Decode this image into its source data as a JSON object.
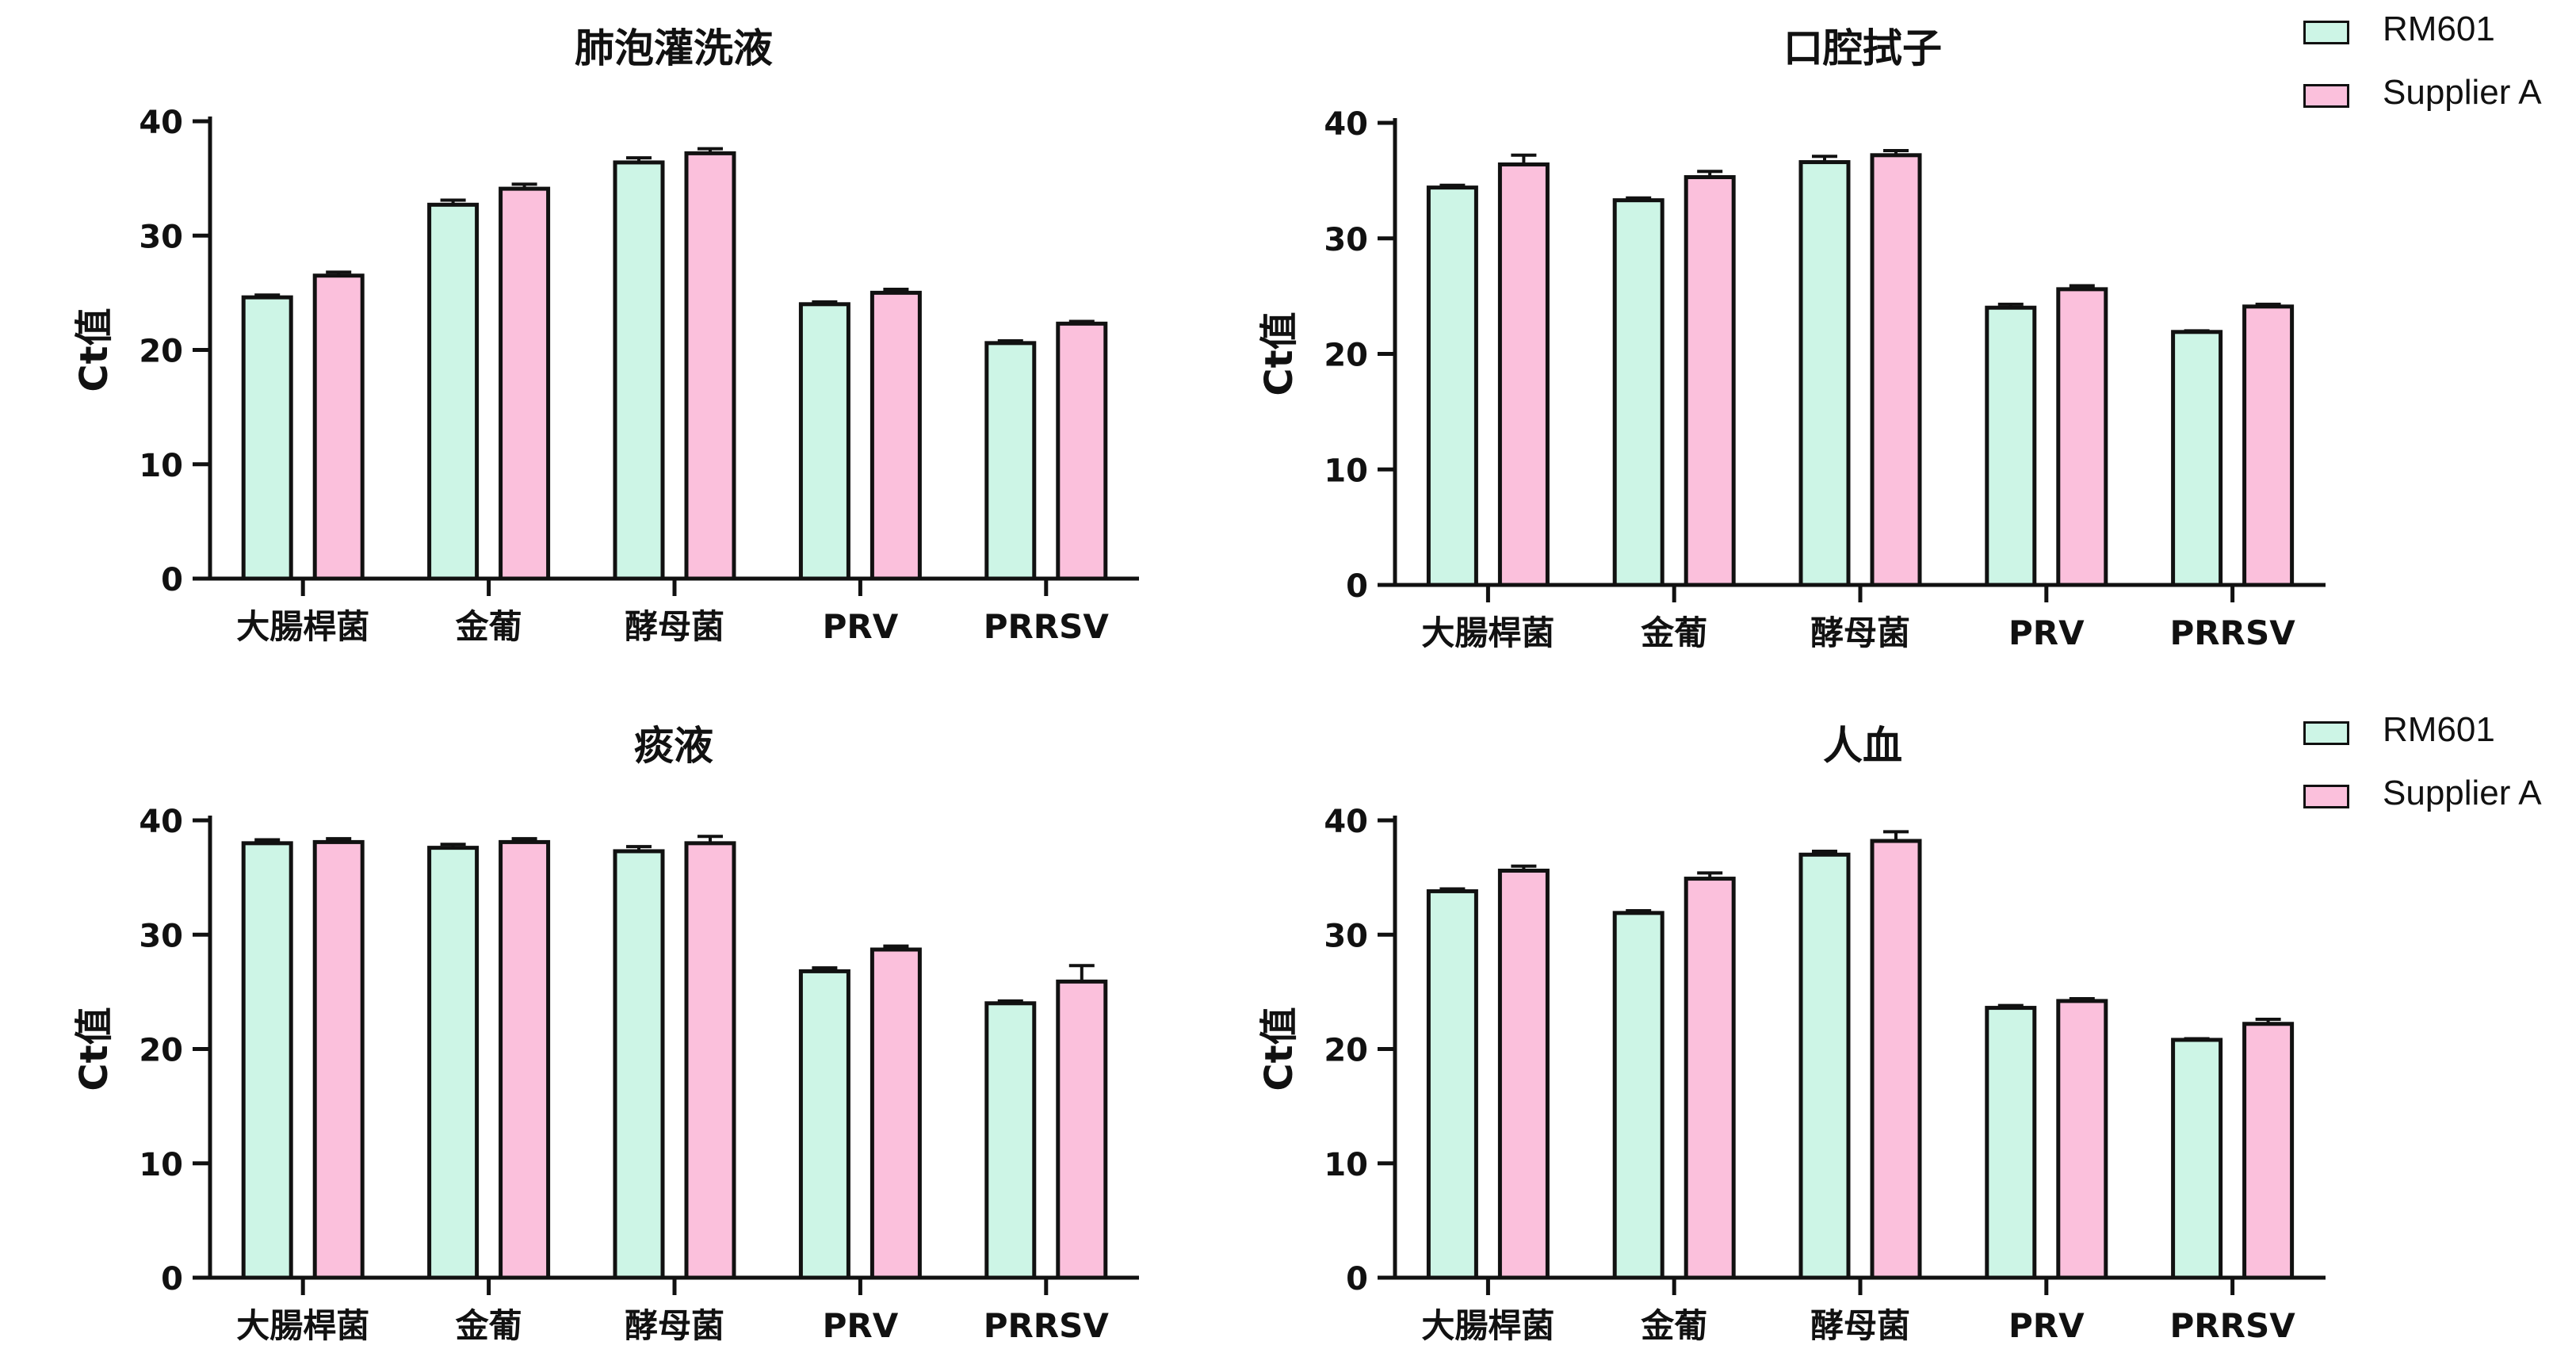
{
  "colors": {
    "RM601": "#cdf5e6",
    "Supplier A": "#fbc0dc",
    "axis": "#111111"
  },
  "legend": {
    "top": [
      {
        "label": "RM601",
        "color": "#cdf5e6"
      },
      {
        "label": "Supplier A",
        "color": "#fbc0dc"
      }
    ],
    "bottom": [
      {
        "label": "RM601",
        "color": "#cdf5e6"
      },
      {
        "label": "Supplier A",
        "color": "#fbc0dc"
      }
    ]
  },
  "chart_data": [
    {
      "type": "bar",
      "title": "肺泡灌洗液",
      "ylabel": "Ct值",
      "xlabel": "",
      "ylim": [
        0,
        40
      ],
      "yticks": [
        0,
        10,
        20,
        30,
        40
      ],
      "categories": [
        "大腸桿菌",
        "金葡",
        "酵母菌",
        "PRV",
        "PRRSV"
      ],
      "series": [
        {
          "name": "RM601",
          "values": [
            24.6,
            32.7,
            36.4,
            24.0,
            20.6
          ],
          "errors": [
            0.2,
            0.4,
            0.4,
            0.2,
            0.2
          ]
        },
        {
          "name": "Supplier A",
          "values": [
            26.5,
            34.1,
            37.2,
            25.0,
            22.3
          ],
          "errors": [
            0.3,
            0.4,
            0.4,
            0.3,
            0.2
          ]
        }
      ],
      "grid": false
    },
    {
      "type": "bar",
      "title": "口腔拭子",
      "ylabel": "Ct值",
      "xlabel": "",
      "ylim": [
        0,
        40
      ],
      "yticks": [
        0,
        10,
        20,
        30,
        40
      ],
      "categories": [
        "大腸桿菌",
        "金葡",
        "酵母菌",
        "PRV",
        "PRRSV"
      ],
      "series": [
        {
          "name": "RM601",
          "values": [
            34.4,
            33.3,
            36.6,
            24.0,
            21.9
          ],
          "errors": [
            0.2,
            0.2,
            0.5,
            0.3,
            0.1
          ]
        },
        {
          "name": "Supplier A",
          "values": [
            36.4,
            35.3,
            37.2,
            25.6,
            24.1
          ],
          "errors": [
            0.8,
            0.5,
            0.4,
            0.3,
            0.2
          ]
        }
      ],
      "grid": false
    },
    {
      "type": "bar",
      "title": "痰液",
      "ylabel": "Ct值",
      "xlabel": "",
      "ylim": [
        0,
        40
      ],
      "yticks": [
        0,
        10,
        20,
        30,
        40
      ],
      "categories": [
        "大腸桿菌",
        "金葡",
        "酵母菌",
        "PRV",
        "PRRSV"
      ],
      "series": [
        {
          "name": "RM601",
          "values": [
            38.0,
            37.6,
            37.3,
            26.8,
            24.0
          ],
          "errors": [
            0.3,
            0.3,
            0.4,
            0.3,
            0.2
          ]
        },
        {
          "name": "Supplier A",
          "values": [
            38.1,
            38.1,
            38.0,
            28.7,
            25.9
          ],
          "errors": [
            0.3,
            0.3,
            0.6,
            0.3,
            1.4
          ]
        }
      ],
      "grid": false
    },
    {
      "type": "bar",
      "title": "人血",
      "ylabel": "Ct值",
      "xlabel": "",
      "ylim": [
        0,
        40
      ],
      "yticks": [
        0,
        10,
        20,
        30,
        40
      ],
      "categories": [
        "大腸桿菌",
        "金葡",
        "酵母菌",
        "PRV",
        "PRRSV"
      ],
      "series": [
        {
          "name": "RM601",
          "values": [
            33.8,
            31.9,
            37.0,
            23.6,
            20.8
          ],
          "errors": [
            0.2,
            0.2,
            0.3,
            0.2,
            0.1
          ]
        },
        {
          "name": "Supplier A",
          "values": [
            35.6,
            34.9,
            38.2,
            24.2,
            22.2
          ],
          "errors": [
            0.4,
            0.5,
            0.8,
            0.2,
            0.4
          ]
        }
      ],
      "grid": false
    }
  ]
}
